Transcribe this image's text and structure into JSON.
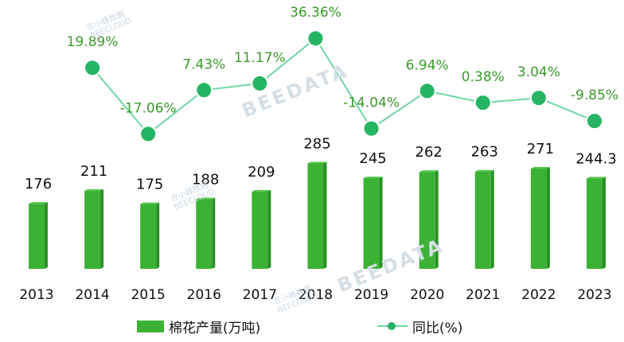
{
  "chart_data": {
    "type": "bar",
    "categories": [
      "2013",
      "2014",
      "2015",
      "2016",
      "2017",
      "2018",
      "2019",
      "2020",
      "2021",
      "2022",
      "2023"
    ],
    "series": [
      {
        "name": "棉花产量(万吨)",
        "type": "bar",
        "values": [
          176,
          211,
          175,
          188,
          209,
          285,
          245,
          262,
          263,
          271,
          244.3
        ],
        "labels": [
          "176",
          "211",
          "175",
          "188",
          "209",
          "285",
          "245",
          "262",
          "263",
          "271",
          "244.3"
        ]
      },
      {
        "name": "同比(%)",
        "type": "line",
        "values": [
          null,
          19.89,
          -17.06,
          7.43,
          11.17,
          36.36,
          -14.04,
          6.94,
          0.38,
          3.04,
          -9.85
        ],
        "labels": [
          "",
          "19.89%",
          "-17.06%",
          "7.43%",
          "11.17%",
          "36.36%",
          "-14.04%",
          "6.94%",
          "0.38%",
          "3.04%",
          "-9.85%"
        ]
      }
    ],
    "colors": {
      "bar": "#3cb235",
      "bar_dark": "#2a8f25",
      "line": "#6fd6a3",
      "dot": "#25b463",
      "line_label": "#3a9a2a"
    }
  },
  "watermarks": {
    "brand_cn": "农小蜂数据",
    "brand_en": "BEECLOUD",
    "brand_big": "BEEDATA"
  }
}
